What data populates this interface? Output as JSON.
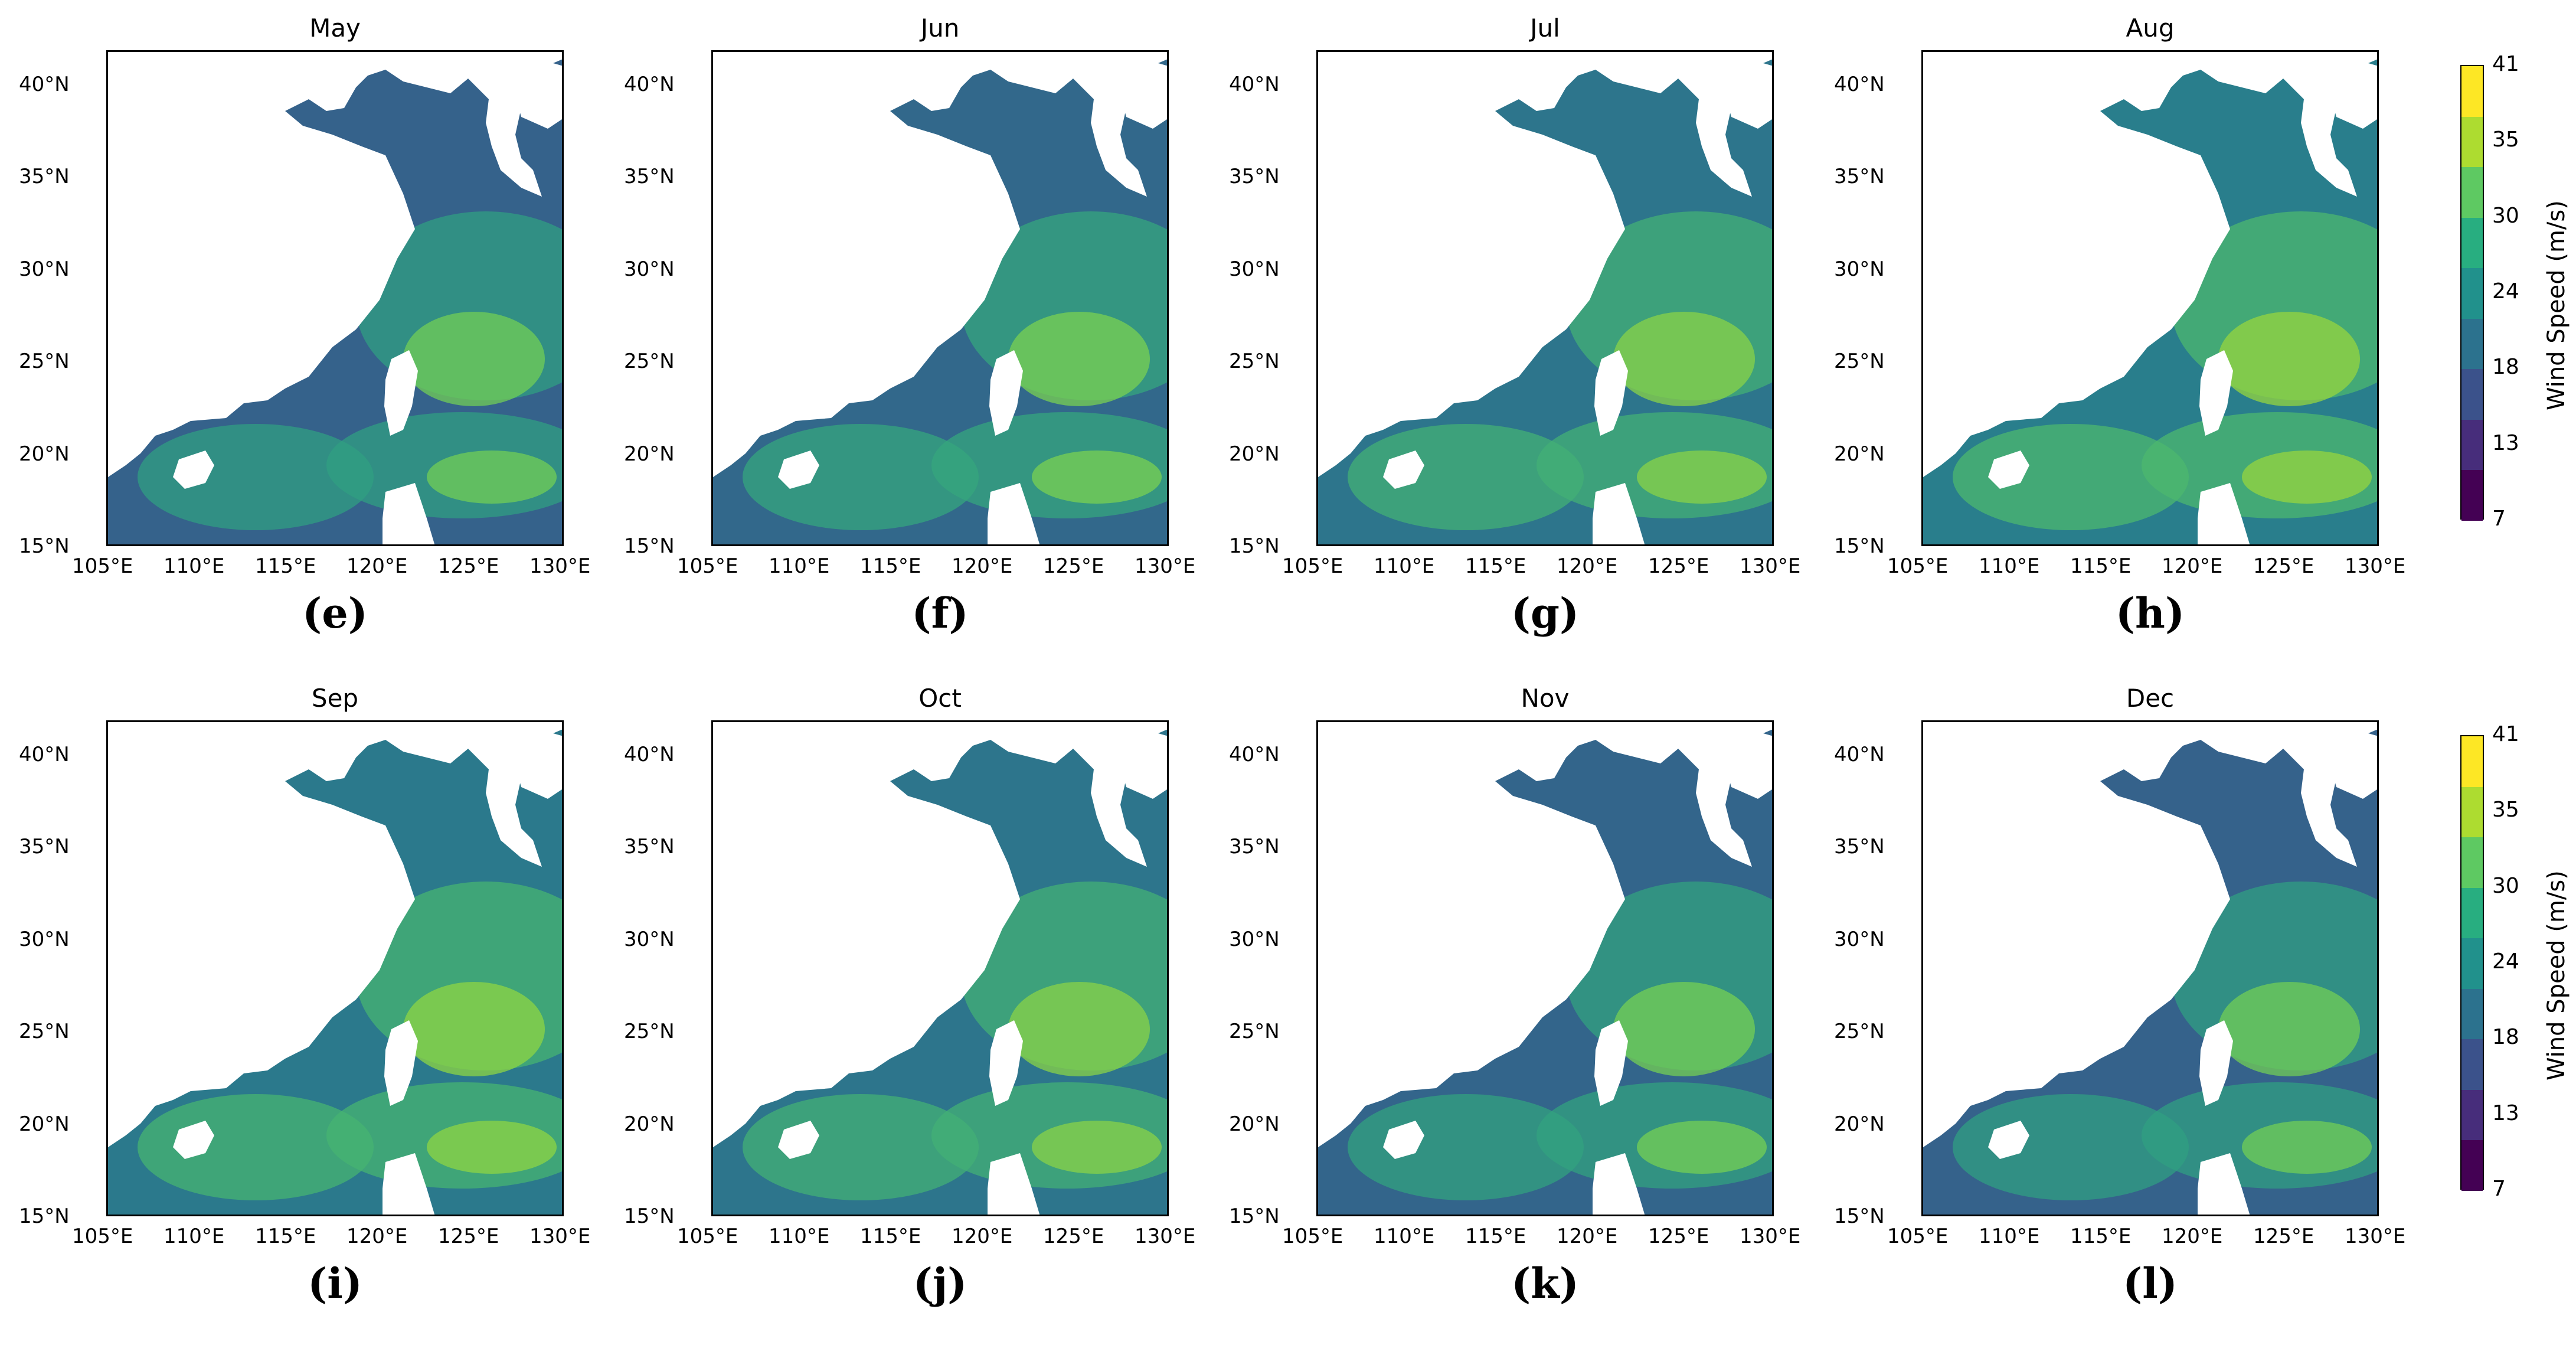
{
  "figure": {
    "rows": [
      {
        "panels": [
          {
            "title": "May",
            "letter": "(e)",
            "intensity": 0.25
          },
          {
            "title": "Jun",
            "letter": "(f)",
            "intensity": 0.35
          },
          {
            "title": "Jul",
            "letter": "(g)",
            "intensity": 0.55
          },
          {
            "title": "Aug",
            "letter": "(h)",
            "intensity": 0.7
          }
        ]
      },
      {
        "panels": [
          {
            "title": "Sep",
            "letter": "(i)",
            "intensity": 0.62
          },
          {
            "title": "Oct",
            "letter": "(j)",
            "intensity": 0.55
          },
          {
            "title": "Nov",
            "letter": "(k)",
            "intensity": 0.3
          },
          {
            "title": "Dec",
            "letter": "(l)",
            "intensity": 0.25
          }
        ]
      }
    ],
    "lat_ticks": [
      "40°N",
      "35°N",
      "30°N",
      "25°N",
      "20°N",
      "15°N"
    ],
    "lon_ticks": [
      "105°E",
      "110°E",
      "115°E",
      "120°E",
      "125°E",
      "130°E"
    ],
    "colorbar": {
      "label": "Wind Speed (m/s)",
      "ticks": [
        "41",
        "35",
        "30",
        "24",
        "18",
        "13",
        "7"
      ],
      "range": [
        7,
        41
      ],
      "colors": [
        "#440154",
        "#472d7b",
        "#3b528b",
        "#2c728e",
        "#21918c",
        "#28ae80",
        "#5ec962",
        "#addc30",
        "#fde725"
      ]
    },
    "land_color": "#ffffff",
    "sea_colors": {
      "low": "#3b528b",
      "mid": "#21918c",
      "high": "#5ec962",
      "peak": "#addc30"
    }
  }
}
